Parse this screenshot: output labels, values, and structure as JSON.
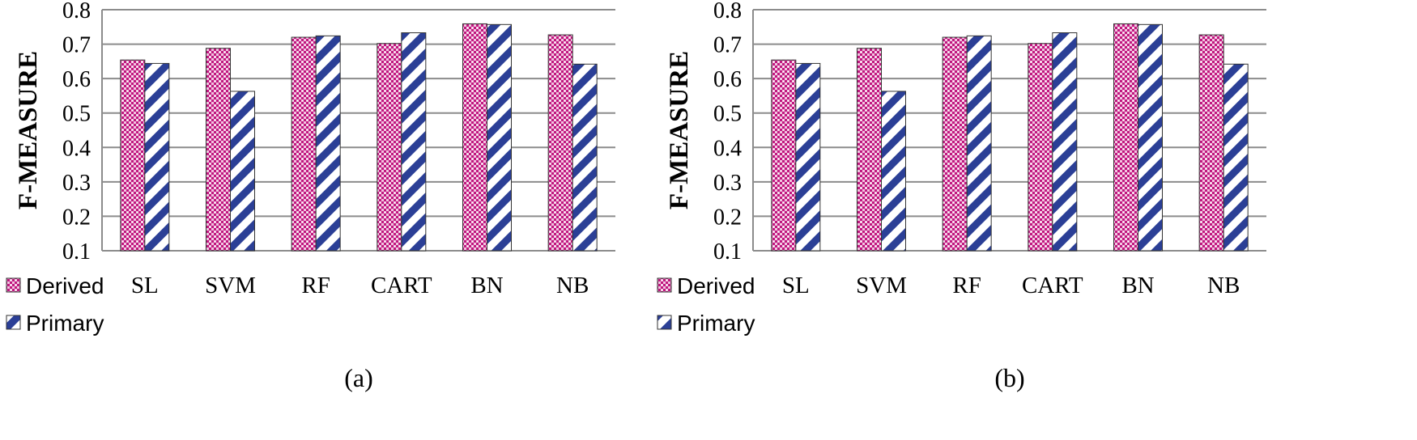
{
  "colors": {
    "derived": "#c0177f",
    "primary": "#2b3f96",
    "grid": "#8c8c8c"
  },
  "chart_data": [
    {
      "type": "bar",
      "caption": "(a)",
      "ylabel": "F-MEASURE",
      "ylim": [
        0.1,
        0.8
      ],
      "yticks": [
        "0.1",
        "0.2",
        "0.3",
        "0.4",
        "0.5",
        "0.6",
        "0.7",
        "0.8"
      ],
      "grid": true,
      "legend": "bottom-left",
      "categories": [
        "SL",
        "SVM",
        "RF",
        "CART",
        "BN",
        "NB"
      ],
      "series": [
        {
          "name": "Derived",
          "pattern": "checker-pink",
          "values": [
            0.654,
            0.688,
            0.72,
            0.702,
            0.759,
            0.727
          ]
        },
        {
          "name": "Primary",
          "pattern": "diagonal-blue",
          "values": [
            0.644,
            0.563,
            0.724,
            0.733,
            0.757,
            0.642
          ]
        }
      ]
    },
    {
      "type": "bar",
      "caption": "(b)",
      "ylabel": "F-MEASURE",
      "ylim": [
        0.1,
        0.8
      ],
      "yticks": [
        "0.1",
        "0.2",
        "0.3",
        "0.4",
        "0.5",
        "0.6",
        "0.7",
        "0.8"
      ],
      "grid": true,
      "legend": "bottom-left",
      "categories": [
        "SL",
        "SVM",
        "RF",
        "CART",
        "BN",
        "NB"
      ],
      "series": [
        {
          "name": "Derived",
          "pattern": "checker-pink",
          "values": [
            0.654,
            0.688,
            0.72,
            0.702,
            0.759,
            0.727
          ]
        },
        {
          "name": "Primary",
          "pattern": "diagonal-blue",
          "values": [
            0.644,
            0.563,
            0.724,
            0.733,
            0.757,
            0.642
          ]
        }
      ]
    }
  ]
}
